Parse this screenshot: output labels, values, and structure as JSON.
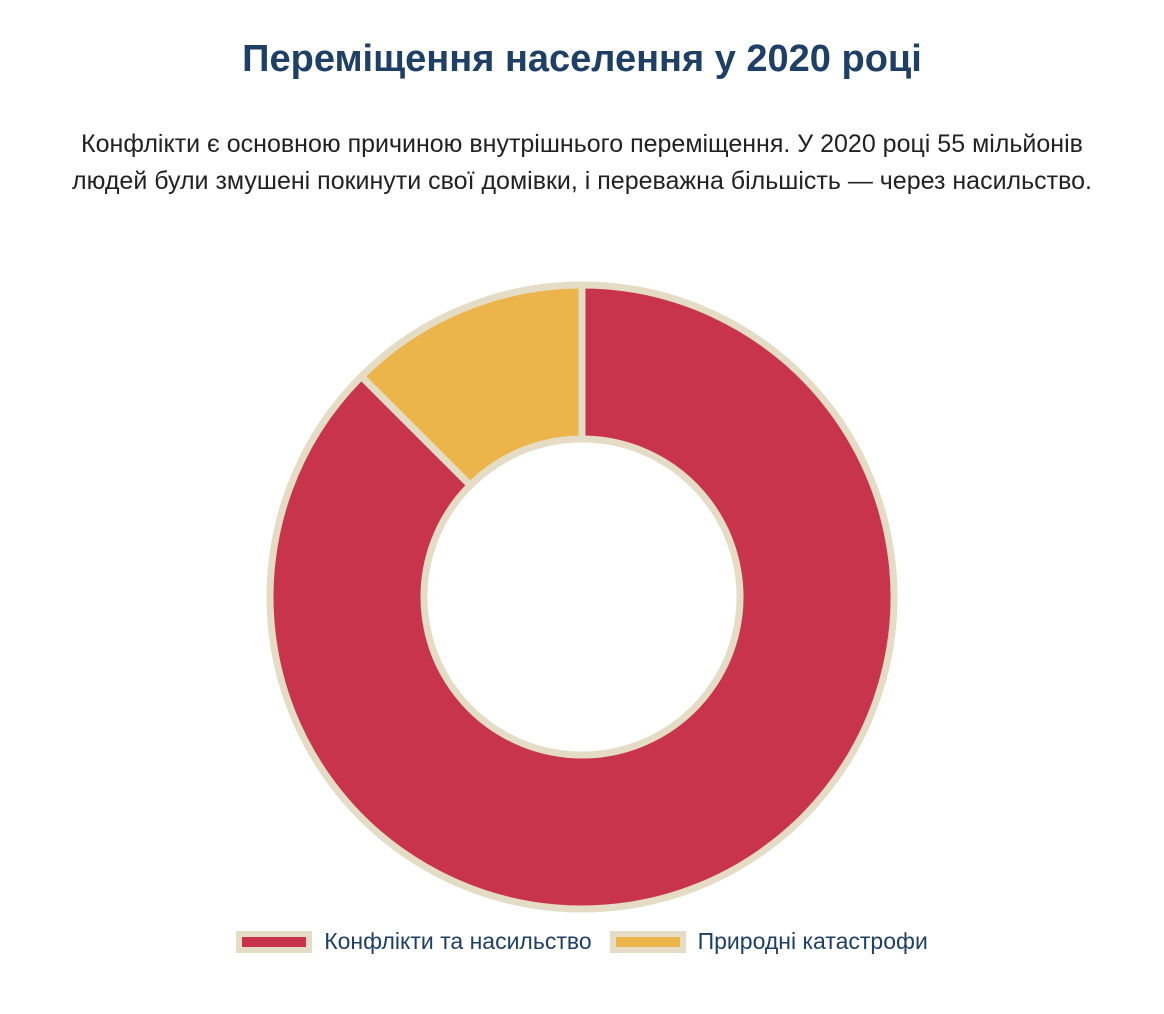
{
  "title": "Переміщення населення у 2020 році",
  "subtitle": "Конфлікти є основною причиною внутрішнього переміщення. У 2020 році 55 мільйонів людей були змушені покинути свої домівки, і переважна більшість — через насильство.",
  "colors": {
    "border": "#e5dcc6",
    "title": "#1e3f66"
  },
  "chart_data": {
    "type": "pie",
    "variant": "doughnut",
    "title": "Переміщення населення у 2020 році",
    "legend_placement": "bottom",
    "series": [
      {
        "name": "Конфлікти та насильство",
        "value": 87.5,
        "color": "#c8344b"
      },
      {
        "name": "Природні катастрофи",
        "value": 12.5,
        "color": "#ecb54c"
      }
    ]
  }
}
